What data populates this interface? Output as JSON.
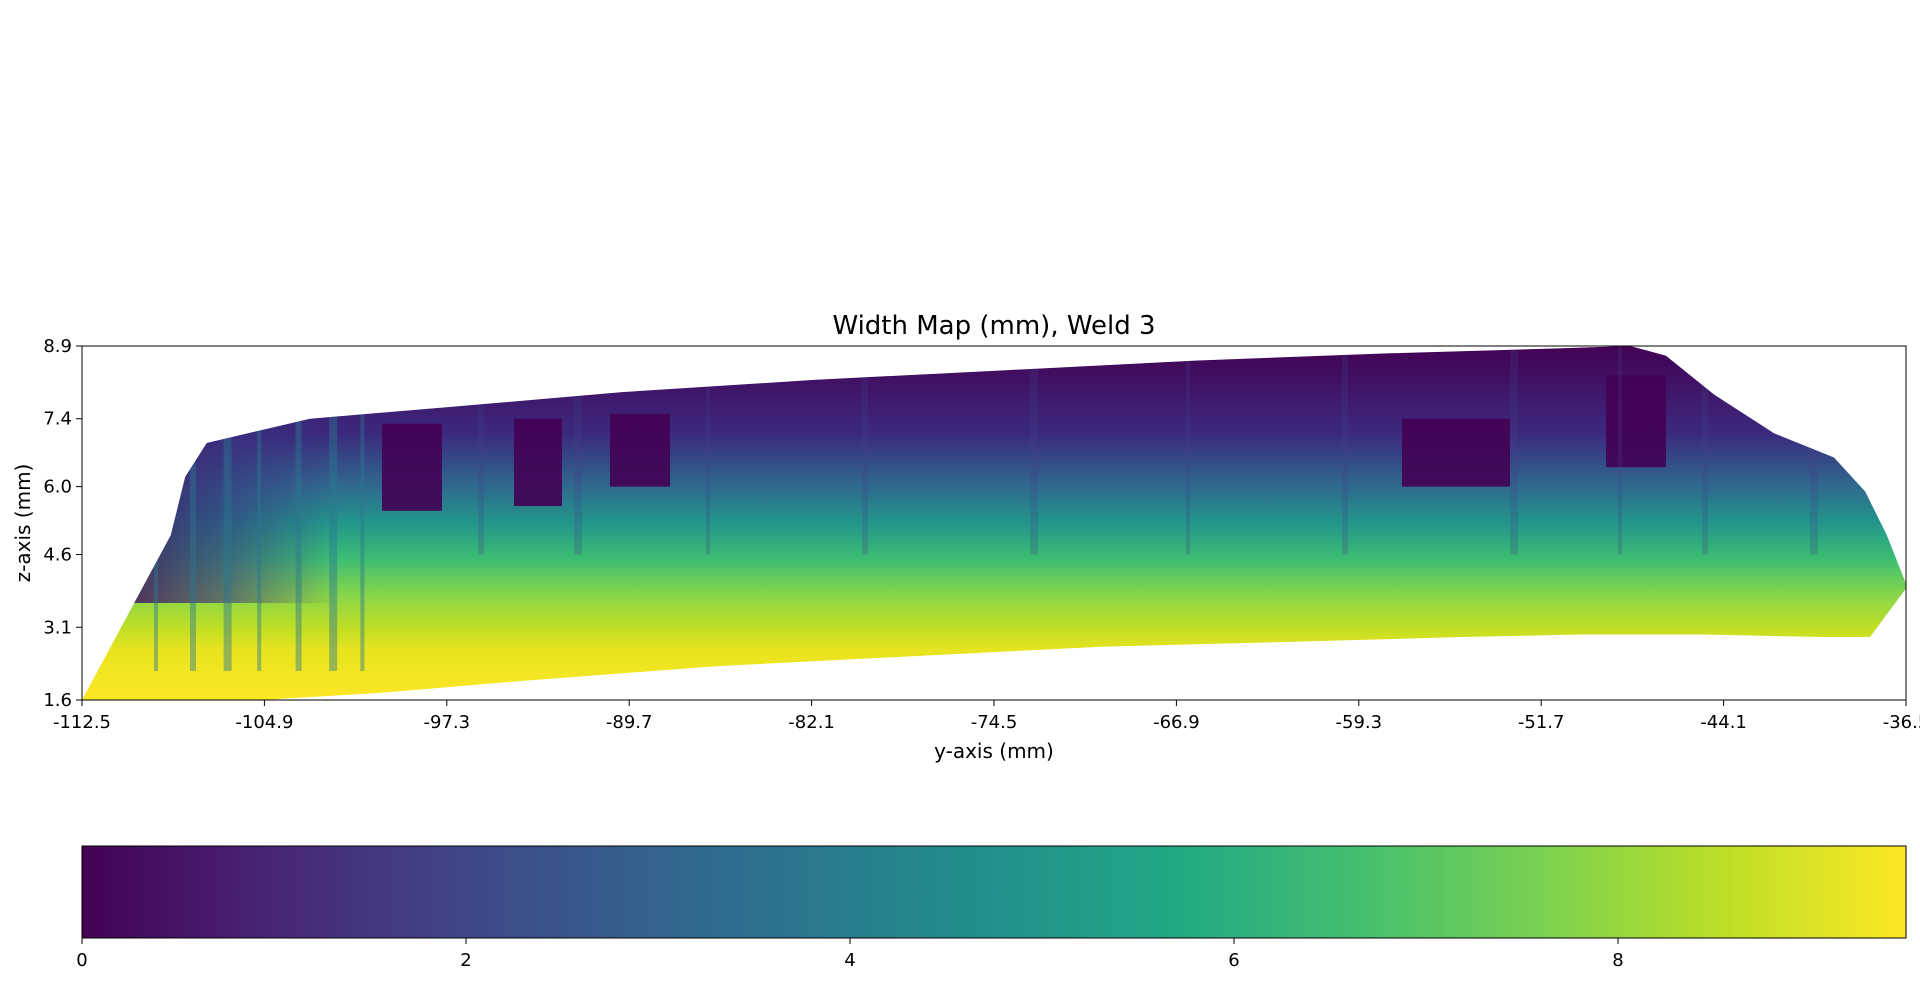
{
  "chart_data": {
    "type": "heatmap",
    "title": "Width Map (mm), Weld 3",
    "xlabel": "y-axis (mm)",
    "ylabel": "z-axis (mm)",
    "xlim": [
      -112.5,
      -36.5
    ],
    "ylim": [
      1.6,
      8.9
    ],
    "x_ticks": [
      "-112.5",
      "-104.9",
      "-97.3",
      "-89.7",
      "-82.1",
      "-74.5",
      "-66.9",
      "-59.3",
      "-51.7",
      "-44.1",
      "-36.5"
    ],
    "y_ticks": [
      "1.6",
      "3.1",
      "4.6",
      "6.0",
      "7.4",
      "8.9"
    ],
    "grid": false,
    "colormap": "viridis",
    "colorbar": {
      "orientation": "horizontal",
      "placement": "bottom",
      "range": [
        0,
        9.5
      ],
      "ticks": [
        "0",
        "2",
        "4",
        "6",
        "8"
      ]
    },
    "region_boundary": {
      "top": [
        [
          -112.5,
          1.6
        ],
        [
          -108.8,
          5.0
        ],
        [
          -108.2,
          6.2
        ],
        [
          -107.3,
          6.9
        ],
        [
          -103.0,
          7.4
        ],
        [
          -97.0,
          7.65
        ],
        [
          -90.0,
          7.95
        ],
        [
          -82.0,
          8.2
        ],
        [
          -74.0,
          8.4
        ],
        [
          -66.0,
          8.6
        ],
        [
          -58.0,
          8.75
        ],
        [
          -51.0,
          8.85
        ],
        [
          -48.0,
          8.9
        ],
        [
          -46.5,
          8.7
        ],
        [
          -44.5,
          7.9
        ],
        [
          -42.0,
          7.1
        ],
        [
          -39.5,
          6.6
        ],
        [
          -38.2,
          5.9
        ],
        [
          -37.3,
          5.0
        ],
        [
          -36.5,
          4.0
        ]
      ],
      "bottom": [
        [
          -36.5,
          3.9
        ],
        [
          -38.0,
          2.9
        ],
        [
          -40.0,
          2.9
        ],
        [
          -45.0,
          2.95
        ],
        [
          -50.0,
          2.95
        ],
        [
          -55.0,
          2.9
        ],
        [
          -62.0,
          2.8
        ],
        [
          -70.0,
          2.7
        ],
        [
          -78.0,
          2.5
        ],
        [
          -86.0,
          2.3
        ],
        [
          -94.0,
          2.0
        ],
        [
          -100.0,
          1.75
        ],
        [
          -105.0,
          1.6
        ],
        [
          -112.5,
          1.6
        ]
      ]
    },
    "low_value_pockets": [
      {
        "y_range": [
          -100.0,
          -97.5
        ],
        "z_range": [
          5.5,
          7.3
        ]
      },
      {
        "y_range": [
          -94.5,
          -92.5
        ],
        "z_range": [
          5.6,
          7.4
        ]
      },
      {
        "y_range": [
          -90.5,
          -88.0
        ],
        "z_range": [
          6.0,
          7.5
        ]
      },
      {
        "y_range": [
          -57.5,
          -53.0
        ],
        "z_range": [
          6.0,
          7.4
        ]
      },
      {
        "y_range": [
          -49.0,
          -46.5
        ],
        "z_range": [
          6.4,
          8.3
        ]
      }
    ]
  }
}
